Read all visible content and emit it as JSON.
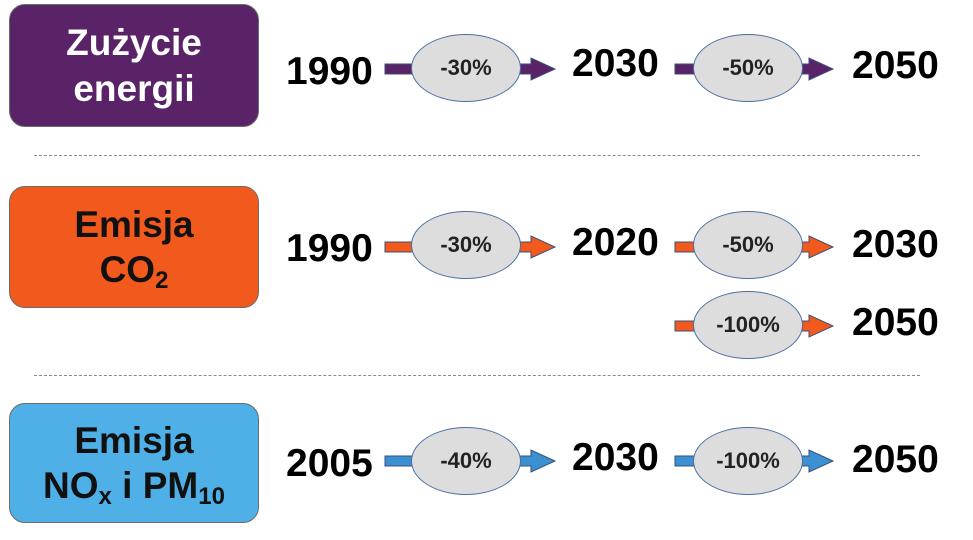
{
  "categories": [
    {
      "id": "energy",
      "title_lines": [
        "Zużycie",
        "energii"
      ],
      "color": "#5a2267",
      "arrow_color": "#5a2267",
      "steps": [
        {
          "from": "1990",
          "change": "-30%",
          "to": "2030"
        },
        {
          "from": "2030",
          "change": "-50%",
          "to": "2050"
        }
      ]
    },
    {
      "id": "co2",
      "title_line1": "Emisja",
      "title_line2_main": "CO",
      "title_line2_sub": "2",
      "color": "#f25a1d",
      "arrow_color": "#f25a1d",
      "steps": [
        {
          "from": "1990",
          "change": "-30%",
          "to": "2020"
        },
        {
          "from": "2020",
          "change": "-50%",
          "to": "2030"
        },
        {
          "from": "2020",
          "change": "-100%",
          "to": "2050"
        }
      ]
    },
    {
      "id": "nox",
      "title_line1": "Emisja",
      "title_line2_parts": {
        "no": "NO",
        "x": "x",
        "mid": " i PM",
        "ten": "10"
      },
      "color": "#4eb0e6",
      "arrow_color": "#3a90d0",
      "steps": [
        {
          "from": "2005",
          "change": "-40%",
          "to": "2030"
        },
        {
          "from": "2030",
          "change": "-100%",
          "to": "2050"
        }
      ]
    }
  ]
}
